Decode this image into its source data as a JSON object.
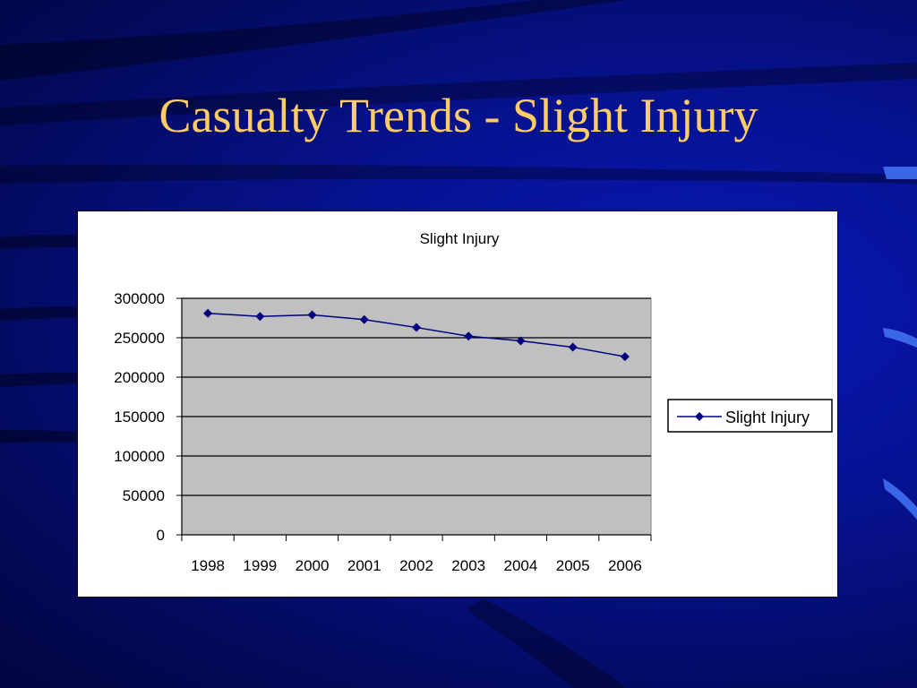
{
  "slide": {
    "title": "Casualty Trends - Slight Injury"
  },
  "colors": {
    "title": "#ffcc66",
    "series": "#000080",
    "plot_bg": "#c0c0c0"
  },
  "chart_data": {
    "type": "line",
    "title": "Slight Injury",
    "xlabel": "",
    "ylabel": "",
    "categories": [
      "1998",
      "1999",
      "2000",
      "2001",
      "2002",
      "2003",
      "2004",
      "2005",
      "2006"
    ],
    "series": [
      {
        "name": "Slight Injury",
        "values": [
          281000,
          277000,
          279000,
          273000,
          263000,
          252000,
          246000,
          238000,
          226000
        ],
        "marker": "diamond",
        "color": "#000080"
      }
    ],
    "ylim": [
      0,
      300000
    ],
    "yticks": [
      "0",
      "50000",
      "100000",
      "150000",
      "200000",
      "250000",
      "300000"
    ],
    "grid": true,
    "legend": "right"
  }
}
